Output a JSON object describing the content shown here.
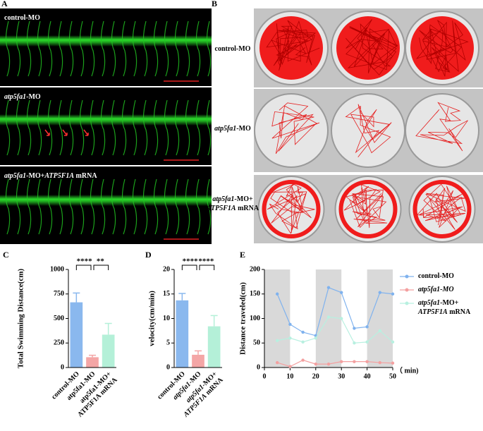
{
  "panels": {
    "A": {
      "label": "A",
      "rows": [
        [
          [
            {
              "text": "control-MO"
            }
          ]
        ],
        [
          [
            {
              "text": "atp5fa1",
              "italic": true
            },
            {
              "text": "-MO"
            }
          ]
        ],
        [
          [
            {
              "text": "atp5fa1",
              "italic": true
            },
            {
              "text": "-MO+"
            },
            {
              "text": "ATP5F1A",
              "italic": true
            },
            {
              "text": " mRNA"
            }
          ]
        ]
      ]
    },
    "B": {
      "label": "B",
      "rows": [
        [
          [
            {
              "text": "control-MO"
            }
          ]
        ],
        [
          [
            {
              "text": "atp5fa1",
              "italic": true
            },
            {
              "text": "-MO"
            }
          ]
        ],
        [
          [
            {
              "text": "atp5fa1",
              "italic": true
            },
            {
              "text": "-MO+"
            }
          ],
          [
            {
              "text": "ATP5F1A",
              "italic": true
            },
            {
              "text": " mRNA"
            }
          ]
        ]
      ]
    }
  },
  "chart_data": [
    {
      "type": "bar",
      "panel_label": "C",
      "y_label": "Total Swimming Distance(cm)",
      "categories": [
        [
          [
            {
              "text": "control-MO"
            }
          ]
        ],
        [
          [
            {
              "text": "atp5fa1-MO"
            }
          ]
        ],
        [
          [
            {
              "text": "atp5fa1-MO+"
            }
          ],
          [
            {
              "text": "ATP5F1A mRNA"
            }
          ]
        ]
      ],
      "values": [
        665,
        105,
        335
      ],
      "errors": [
        95,
        20,
        115
      ],
      "colors": [
        "#8ab8ee",
        "#f4a6a6",
        "#b4f0d8"
      ],
      "ylim": [
        0,
        1000
      ],
      "yticks": [
        0,
        250,
        500,
        750,
        1000
      ],
      "annotations": [
        {
          "text": "****",
          "from": 0,
          "to": 1
        },
        {
          "text": "**",
          "from": 1,
          "to": 2
        }
      ]
    },
    {
      "type": "bar",
      "panel_label": "D",
      "y_label": "velocity(cm/min)",
      "categories": [
        [
          [
            {
              "text": "control-MO"
            }
          ]
        ],
        [
          [
            {
              "text": "atp5fa1",
              "italic": true
            },
            {
              "text": "-MO"
            }
          ]
        ],
        [
          [
            {
              "text": "atp5fa1",
              "italic": true
            },
            {
              "text": "-MO+"
            }
          ],
          [
            {
              "text": "ATP5F1A",
              "italic": true
            },
            {
              "text": " mRNA"
            }
          ]
        ]
      ],
      "values": [
        13.7,
        2.6,
        8.4
      ],
      "errors": [
        1.4,
        0.8,
        2.2
      ],
      "colors": [
        "#8ab8ee",
        "#f4a6a6",
        "#b4f0d8"
      ],
      "ylim": [
        0,
        20
      ],
      "yticks": [
        0,
        5,
        10,
        15,
        20
      ],
      "annotations": [
        {
          "text": "****",
          "from": 0,
          "to": 1
        },
        {
          "text": "****",
          "from": 1,
          "to": 2
        }
      ]
    },
    {
      "type": "line",
      "panel_label": "E",
      "y_label": "Distance traveled(cm)",
      "x_label": "（ min)",
      "x": [
        5,
        10,
        15,
        20,
        25,
        30,
        35,
        40,
        45,
        50
      ],
      "series": [
        {
          "name": [
            [
              {
                "text": "control-MO"
              }
            ]
          ],
          "color": "#7fb2ee",
          "values": [
            150,
            88,
            72,
            65,
            163,
            153,
            80,
            83,
            153,
            150
          ]
        },
        {
          "name": [
            [
              {
                "text": "atp5fa1-MO",
                "italic": true
              }
            ]
          ],
          "color": "#f4a0a0",
          "values": [
            10,
            2,
            15,
            7,
            7,
            12,
            12,
            12,
            10,
            9
          ]
        },
        {
          "name": [
            [
              {
                "text": "atp5fa1",
                "italic": true
              },
              {
                "text": "-MO+"
              }
            ],
            [
              {
                "text": "ATP5F1A",
                "italic": true
              },
              {
                "text": " mRNA"
              }
            ]
          ],
          "color": "#b8f0e0",
          "values": [
            55,
            60,
            52,
            60,
            103,
            100,
            50,
            52,
            75,
            52
          ]
        }
      ],
      "shaded_x": [
        [
          0,
          10
        ],
        [
          20,
          30
        ],
        [
          40,
          50
        ]
      ],
      "xlim": [
        0,
        50
      ],
      "xticks": [
        0,
        10,
        20,
        30,
        40,
        50
      ],
      "ylim": [
        0,
        200
      ],
      "yticks": [
        0,
        50,
        100,
        150,
        200
      ]
    }
  ]
}
